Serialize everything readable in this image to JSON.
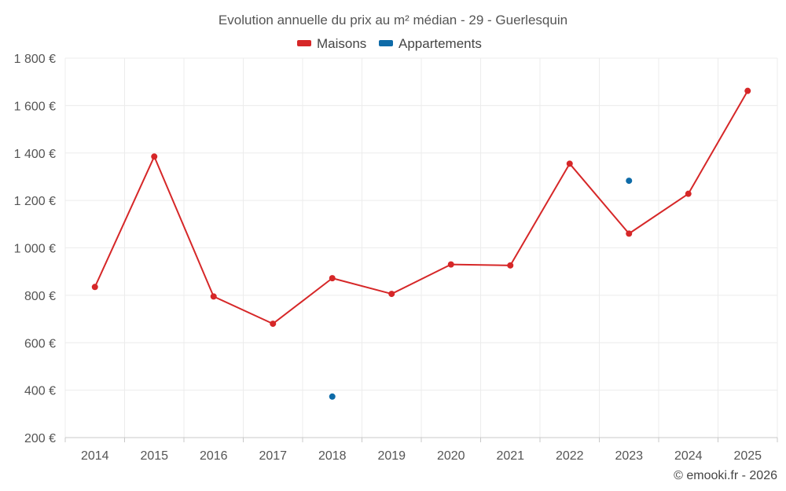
{
  "chart_data": {
    "type": "line",
    "title": "Evolution annuelle du prix au m² médian - 29 - Guerlesquin",
    "categories": [
      "2014",
      "2015",
      "2016",
      "2017",
      "2018",
      "2019",
      "2020",
      "2021",
      "2022",
      "2023",
      "2024",
      "2025"
    ],
    "series": [
      {
        "name": "Maisons",
        "color": "#d62728",
        "values": [
          835,
          1385,
          795,
          680,
          872,
          806,
          930,
          926,
          1355,
          1060,
          1228,
          1662
        ]
      },
      {
        "name": "Appartements",
        "color": "#0e6ba8",
        "values": [
          null,
          null,
          null,
          null,
          373,
          null,
          null,
          null,
          null,
          1283,
          null,
          null
        ]
      }
    ],
    "ylim": [
      200,
      1800
    ],
    "yticks": [
      200,
      400,
      600,
      800,
      1000,
      1200,
      1400,
      1600,
      1800
    ],
    "ytick_labels": [
      "200 €",
      "400 €",
      "600 €",
      "800 €",
      "1 000 €",
      "1 200 €",
      "1 400 €",
      "1 600 €",
      "1 800 €"
    ],
    "legend_position": "top-center",
    "grid": true,
    "xlabel": "",
    "ylabel": ""
  },
  "credit": "© emooki.fr - 2026"
}
